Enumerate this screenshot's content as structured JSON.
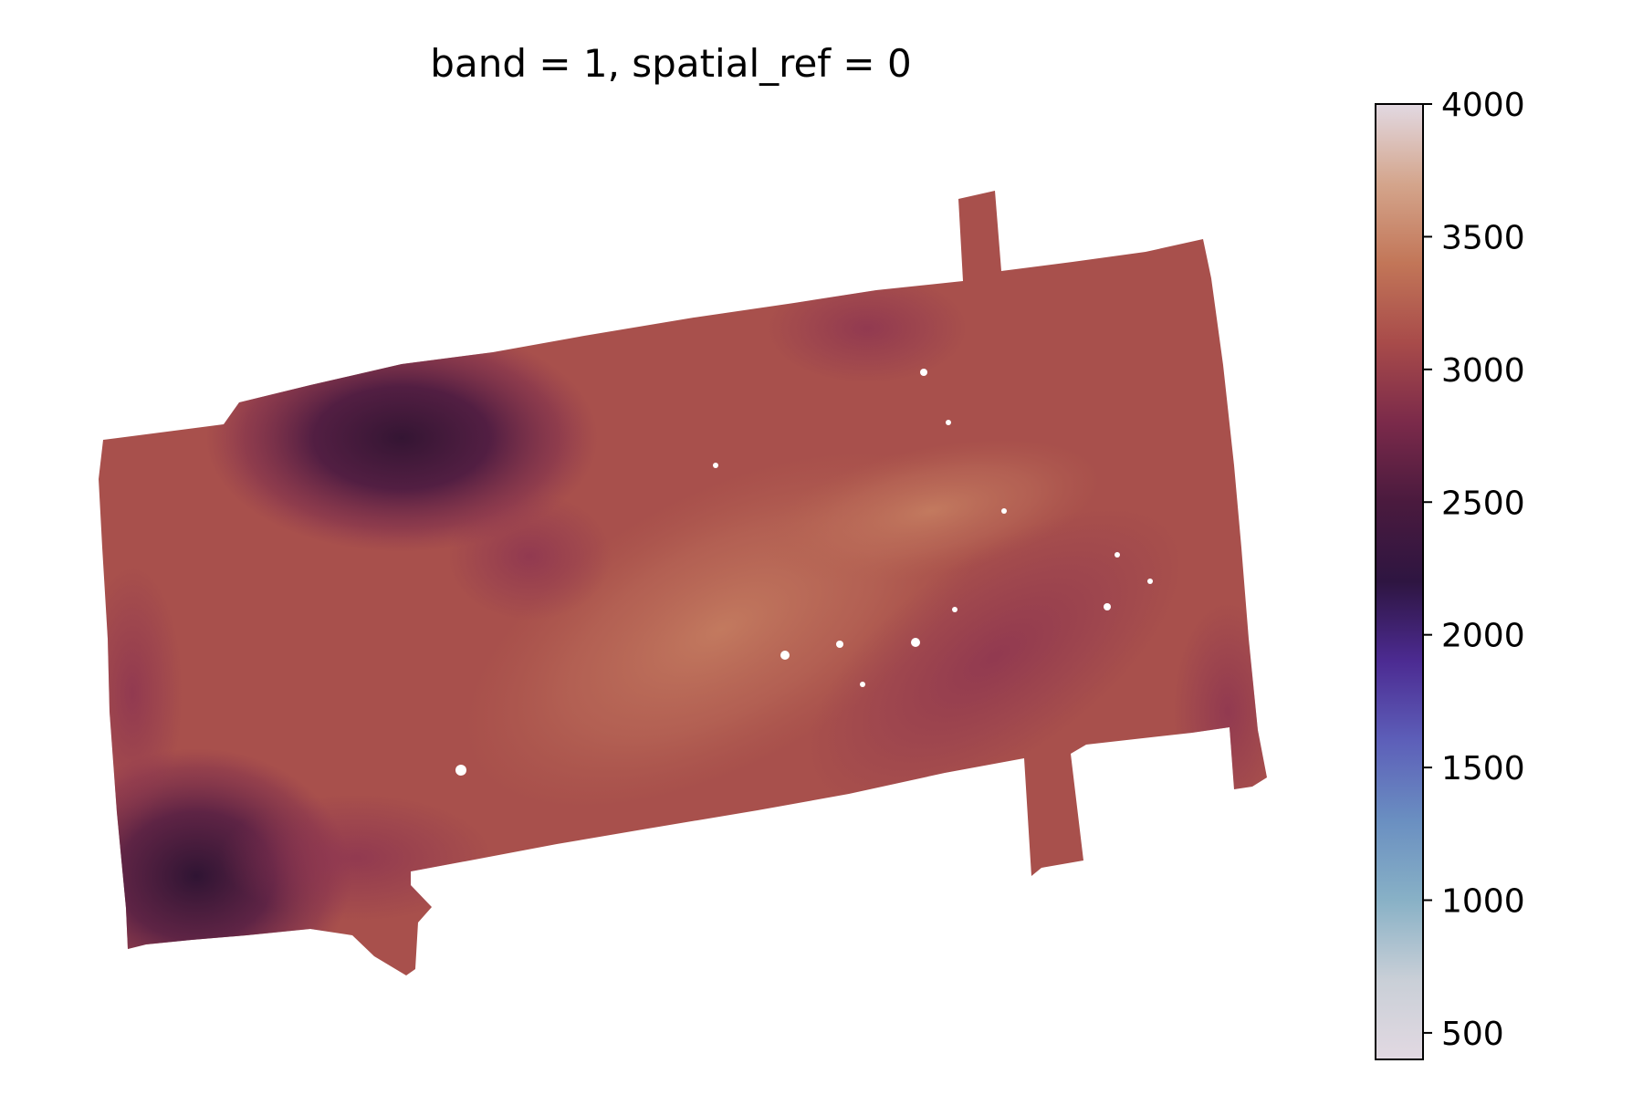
{
  "chart_data": {
    "type": "heatmap",
    "title": "band = 1, spatial_ref = 0",
    "xlabel": "",
    "ylabel": "",
    "axes_visible": false,
    "grid": false,
    "colormap": "twilight_shifted-like (dark purple → copper → pale lavender)",
    "colorbar": {
      "location": "right",
      "vmin": 400,
      "vmax": 4000,
      "ticks": [
        500,
        1000,
        1500,
        2000,
        2500,
        3000,
        3500,
        4000
      ],
      "tick_labels": [
        "500",
        "1000",
        "1500",
        "2000",
        "2500",
        "3000",
        "3500",
        "4000"
      ],
      "color_stops": [
        {
          "value": 400,
          "color": "#e2d9e2"
        },
        {
          "value": 700,
          "color": "#c9cfd7"
        },
        {
          "value": 1000,
          "color": "#88b1c6"
        },
        {
          "value": 1300,
          "color": "#6a8fc1"
        },
        {
          "value": 1600,
          "color": "#5d5fb9"
        },
        {
          "value": 1900,
          "color": "#4c2b92"
        },
        {
          "value": 2200,
          "color": "#2e1541"
        },
        {
          "value": 2500,
          "color": "#4a1a3e"
        },
        {
          "value": 2800,
          "color": "#7b2a4a"
        },
        {
          "value": 3100,
          "color": "#a84b4a"
        },
        {
          "value": 3400,
          "color": "#c27658"
        },
        {
          "value": 3700,
          "color": "#d4a58c"
        },
        {
          "value": 4000,
          "color": "#e2d9e2"
        }
      ]
    },
    "data_range_observed": [
      2250,
      3400
    ],
    "regions": [
      {
        "name": "main-swath",
        "value": 3100
      },
      {
        "name": "upper-left-deep",
        "value": 2400
      },
      {
        "name": "lower-left-deep",
        "value": 2350
      },
      {
        "name": "center-ridge",
        "value": 3400
      },
      {
        "name": "right-band",
        "value": 3000
      }
    ],
    "no_data_color": "#ffffff"
  }
}
